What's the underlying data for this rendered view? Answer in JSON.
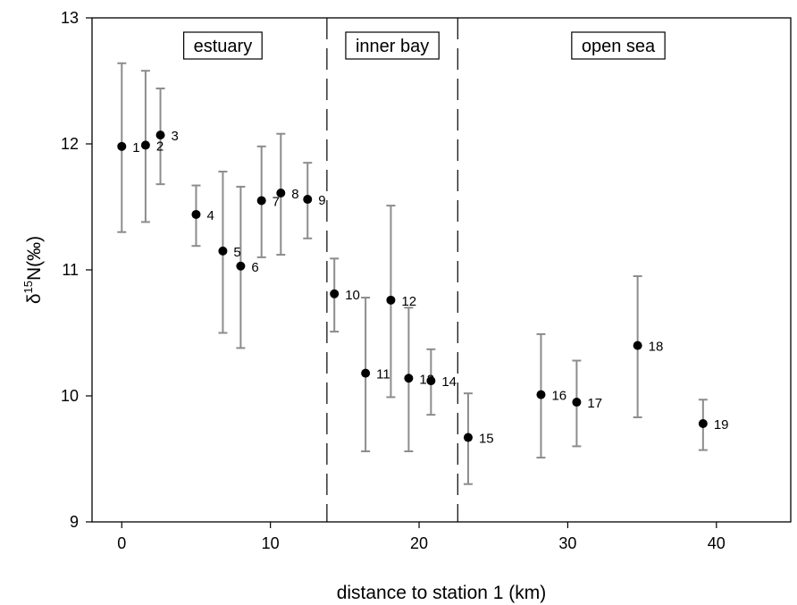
{
  "chart_data": {
    "type": "scatter",
    "title": "",
    "xlabel": "distance to station 1 (km)",
    "ylabel_main": "δ",
    "ylabel_sup": "15",
    "ylabel_rest": "N(‰)",
    "xlim": [
      -2,
      45
    ],
    "ylim": [
      9,
      13
    ],
    "xticks": [
      "0",
      "10",
      "20",
      "30",
      "40"
    ],
    "yticks": [
      "9",
      "10",
      "11",
      "12",
      "13"
    ],
    "regions": [
      {
        "label": "estuary",
        "center_x": 6.8
      },
      {
        "label": "inner bay",
        "center_x": 18.2
      },
      {
        "label": "open sea",
        "center_x": 33.4
      }
    ],
    "boundaries_x": [
      13.8,
      22.6
    ],
    "points": [
      {
        "label": "1",
        "x": 0.0,
        "y": 11.98,
        "lo": 11.3,
        "hi": 12.64
      },
      {
        "label": "2",
        "x": 1.6,
        "y": 11.99,
        "lo": 11.38,
        "hi": 12.58
      },
      {
        "label": "3",
        "x": 2.6,
        "y": 12.07,
        "lo": 11.68,
        "hi": 12.44
      },
      {
        "label": "4",
        "x": 5.0,
        "y": 11.44,
        "lo": 11.19,
        "hi": 11.67
      },
      {
        "label": "5",
        "x": 6.8,
        "y": 11.15,
        "lo": 10.5,
        "hi": 11.78
      },
      {
        "label": "6",
        "x": 8.0,
        "y": 11.03,
        "lo": 10.38,
        "hi": 11.66
      },
      {
        "label": "7",
        "x": 9.4,
        "y": 11.55,
        "lo": 11.1,
        "hi": 11.98
      },
      {
        "label": "8",
        "x": 10.7,
        "y": 11.61,
        "lo": 11.12,
        "hi": 12.08
      },
      {
        "label": "9",
        "x": 12.5,
        "y": 11.56,
        "lo": 11.25,
        "hi": 11.85
      },
      {
        "label": "10",
        "x": 14.3,
        "y": 10.81,
        "lo": 10.51,
        "hi": 11.09
      },
      {
        "label": "11",
        "x": 16.4,
        "y": 10.18,
        "lo": 9.56,
        "hi": 10.78
      },
      {
        "label": "12",
        "x": 18.1,
        "y": 10.76,
        "lo": 9.99,
        "hi": 11.51
      },
      {
        "label": "13",
        "x": 19.3,
        "y": 10.14,
        "lo": 9.56,
        "hi": 10.7
      },
      {
        "label": "14",
        "x": 20.8,
        "y": 10.12,
        "lo": 9.85,
        "hi": 10.37
      },
      {
        "label": "15",
        "x": 23.3,
        "y": 9.67,
        "lo": 9.3,
        "hi": 10.02
      },
      {
        "label": "16",
        "x": 28.2,
        "y": 10.01,
        "lo": 9.51,
        "hi": 10.49
      },
      {
        "label": "17",
        "x": 30.6,
        "y": 9.95,
        "lo": 9.6,
        "hi": 10.28
      },
      {
        "label": "18",
        "x": 34.7,
        "y": 10.4,
        "lo": 9.83,
        "hi": 10.95
      },
      {
        "label": "19",
        "x": 39.1,
        "y": 9.78,
        "lo": 9.57,
        "hi": 9.97
      }
    ],
    "grid": false,
    "colors": {
      "marker": "#000000",
      "errorbar": "#8c8c8c",
      "axis": "#000000"
    }
  }
}
